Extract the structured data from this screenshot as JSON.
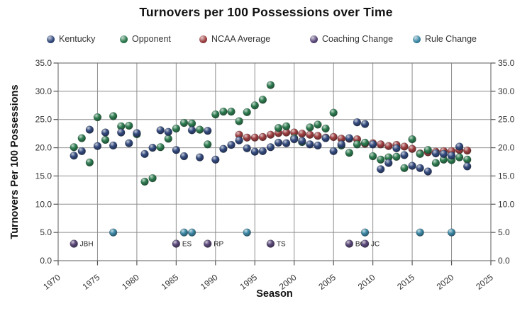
{
  "title": "Turnovers per 100 Possessions over Time",
  "legend": {
    "items": [
      {
        "label": "Kentucky",
        "color": "#334a7d"
      },
      {
        "label": "Opponent",
        "color": "#2e7b50"
      },
      {
        "label": "NCAA Average",
        "color": "#9d3f41"
      },
      {
        "label": "Coaching Change",
        "color": "#5a4879"
      },
      {
        "label": "Rule Change",
        "color": "#3d89a5"
      }
    ]
  },
  "axes": {
    "x_title": "Season",
    "y_title": "Turnovers Per 100 Possessions",
    "x_ticks": [
      "1970",
      "1975",
      "1980",
      "1985",
      "1990",
      "1995",
      "2000",
      "2005",
      "2010",
      "2015",
      "2020",
      "2025"
    ],
    "y_ticks": [
      "0.0",
      "5.0",
      "10.0",
      "15.0",
      "20.0",
      "25.0",
      "30.0",
      "35.0"
    ]
  },
  "chart_data": {
    "type": "scatter",
    "title": "Turnovers per 100 Possessions over Time",
    "xlabel": "Season",
    "ylabel": "Turnovers Per 100 Possessions",
    "xlim": [
      1970,
      2025
    ],
    "ylim": [
      0,
      35
    ],
    "grid": true,
    "legend_position": "top",
    "series": [
      {
        "name": "NCAA Average",
        "color": "#9d3f41",
        "marker": "sphere",
        "points": [
          [
            1993,
            22.3
          ],
          [
            1994,
            21.8
          ],
          [
            1995,
            21.8
          ],
          [
            1996,
            21.9
          ],
          [
            1997,
            22.3
          ],
          [
            1998,
            22.6
          ],
          [
            1999,
            22.7
          ],
          [
            2000,
            22.7
          ],
          [
            2001,
            22.5
          ],
          [
            2002,
            22.3
          ],
          [
            2003,
            22.1
          ],
          [
            2004,
            21.8
          ],
          [
            2005,
            21.9
          ],
          [
            2006,
            21.6
          ],
          [
            2007,
            21.6
          ],
          [
            2008,
            21.5
          ],
          [
            2009,
            20.7
          ],
          [
            2010,
            20.8
          ],
          [
            2011,
            20.6
          ],
          [
            2012,
            20.3
          ],
          [
            2013,
            20.5
          ],
          [
            2014,
            20.2
          ],
          [
            2015,
            19.8
          ],
          [
            2016,
            19.0
          ],
          [
            2017,
            19.2
          ],
          [
            2018,
            19.3
          ],
          [
            2019,
            19.4
          ],
          [
            2020,
            19.4
          ],
          [
            2021,
            19.6
          ],
          [
            2022,
            19.5
          ]
        ]
      },
      {
        "name": "Opponent",
        "color": "#2e7b50",
        "marker": "sphere",
        "points": [
          [
            1972,
            20.1
          ],
          [
            1973,
            21.7
          ],
          [
            1974,
            17.4
          ],
          [
            1975,
            25.4
          ],
          [
            1976,
            21.4
          ],
          [
            1977,
            25.6
          ],
          [
            1978,
            23.8
          ],
          [
            1979,
            23.9
          ],
          [
            1980,
            22.4
          ],
          [
            1981,
            14.0
          ],
          [
            1982,
            14.6
          ],
          [
            1983,
            20.1
          ],
          [
            1984,
            21.6
          ],
          [
            1985,
            23.4
          ],
          [
            1986,
            24.4
          ],
          [
            1987,
            24.3
          ],
          [
            1988,
            23.2
          ],
          [
            1989,
            20.6
          ],
          [
            1990,
            25.9
          ],
          [
            1991,
            26.4
          ],
          [
            1992,
            26.4
          ],
          [
            1993,
            24.7
          ],
          [
            1994,
            26.3
          ],
          [
            1995,
            27.5
          ],
          [
            1996,
            28.5
          ],
          [
            1997,
            31.1
          ],
          [
            1998,
            23.5
          ],
          [
            1999,
            23.8
          ],
          [
            2000,
            21.7
          ],
          [
            2001,
            21.0
          ],
          [
            2002,
            23.6
          ],
          [
            2003,
            24.1
          ],
          [
            2004,
            23.4
          ],
          [
            2005,
            26.2
          ],
          [
            2006,
            20.4
          ],
          [
            2007,
            19.1
          ],
          [
            2008,
            20.6
          ],
          [
            2009,
            20.9
          ],
          [
            2010,
            18.5
          ],
          [
            2011,
            17.9
          ],
          [
            2012,
            18.3
          ],
          [
            2013,
            18.4
          ],
          [
            2014,
            16.4
          ],
          [
            2015,
            21.5
          ],
          [
            2016,
            18.9
          ],
          [
            2017,
            19.6
          ],
          [
            2018,
            17.3
          ],
          [
            2019,
            17.9
          ],
          [
            2020,
            17.8
          ],
          [
            2021,
            18.3
          ],
          [
            2022,
            17.9
          ]
        ]
      },
      {
        "name": "Kentucky",
        "color": "#334a7d",
        "marker": "sphere",
        "points": [
          [
            1972,
            18.6
          ],
          [
            1973,
            19.4
          ],
          [
            1974,
            23.2
          ],
          [
            1975,
            20.3
          ],
          [
            1976,
            22.7
          ],
          [
            1977,
            20.4
          ],
          [
            1978,
            22.7
          ],
          [
            1979,
            20.8
          ],
          [
            1980,
            22.6
          ],
          [
            1981,
            18.9
          ],
          [
            1982,
            20.0
          ],
          [
            1983,
            23.1
          ],
          [
            1984,
            22.8
          ],
          [
            1985,
            19.6
          ],
          [
            1986,
            18.5
          ],
          [
            1987,
            23.1
          ],
          [
            1988,
            18.3
          ],
          [
            1989,
            23.0
          ],
          [
            1990,
            17.9
          ],
          [
            1991,
            19.8
          ],
          [
            1992,
            20.5
          ],
          [
            1993,
            21.3
          ],
          [
            1994,
            19.9
          ],
          [
            1995,
            19.3
          ],
          [
            1996,
            19.4
          ],
          [
            1997,
            20.1
          ],
          [
            1998,
            20.9
          ],
          [
            1999,
            20.8
          ],
          [
            2000,
            21.5
          ],
          [
            2001,
            21.2
          ],
          [
            2002,
            20.6
          ],
          [
            2003,
            20.4
          ],
          [
            2004,
            21.7
          ],
          [
            2005,
            19.4
          ],
          [
            2006,
            20.6
          ],
          [
            2007,
            21.7
          ],
          [
            2008,
            24.5
          ],
          [
            2009,
            24.2
          ],
          [
            2010,
            20.6
          ],
          [
            2011,
            16.2
          ],
          [
            2012,
            17.3
          ],
          [
            2013,
            19.9
          ],
          [
            2014,
            18.7
          ],
          [
            2015,
            16.8
          ],
          [
            2016,
            16.4
          ],
          [
            2017,
            15.8
          ],
          [
            2018,
            19.0
          ],
          [
            2019,
            18.9
          ],
          [
            2020,
            18.6
          ],
          [
            2021,
            20.2
          ],
          [
            2022,
            16.7
          ]
        ]
      },
      {
        "name": "Coaching Change",
        "color": "#5a4879",
        "marker": "sphere",
        "value": 3.0,
        "events": [
          {
            "year": 1972,
            "label": "JBH"
          },
          {
            "year": 1985,
            "label": "ES"
          },
          {
            "year": 1989,
            "label": "RP"
          },
          {
            "year": 1997,
            "label": "TS"
          },
          {
            "year": 2007,
            "label": "BG"
          },
          {
            "year": 2009,
            "label": "JC"
          }
        ]
      },
      {
        "name": "Rule Change",
        "color": "#3d89a5",
        "marker": "sphere",
        "value": 5.0,
        "events": [
          {
            "year": 1977
          },
          {
            "year": 1986
          },
          {
            "year": 1987
          },
          {
            "year": 1994
          },
          {
            "year": 2009
          },
          {
            "year": 2016
          },
          {
            "year": 2020
          }
        ]
      }
    ]
  }
}
